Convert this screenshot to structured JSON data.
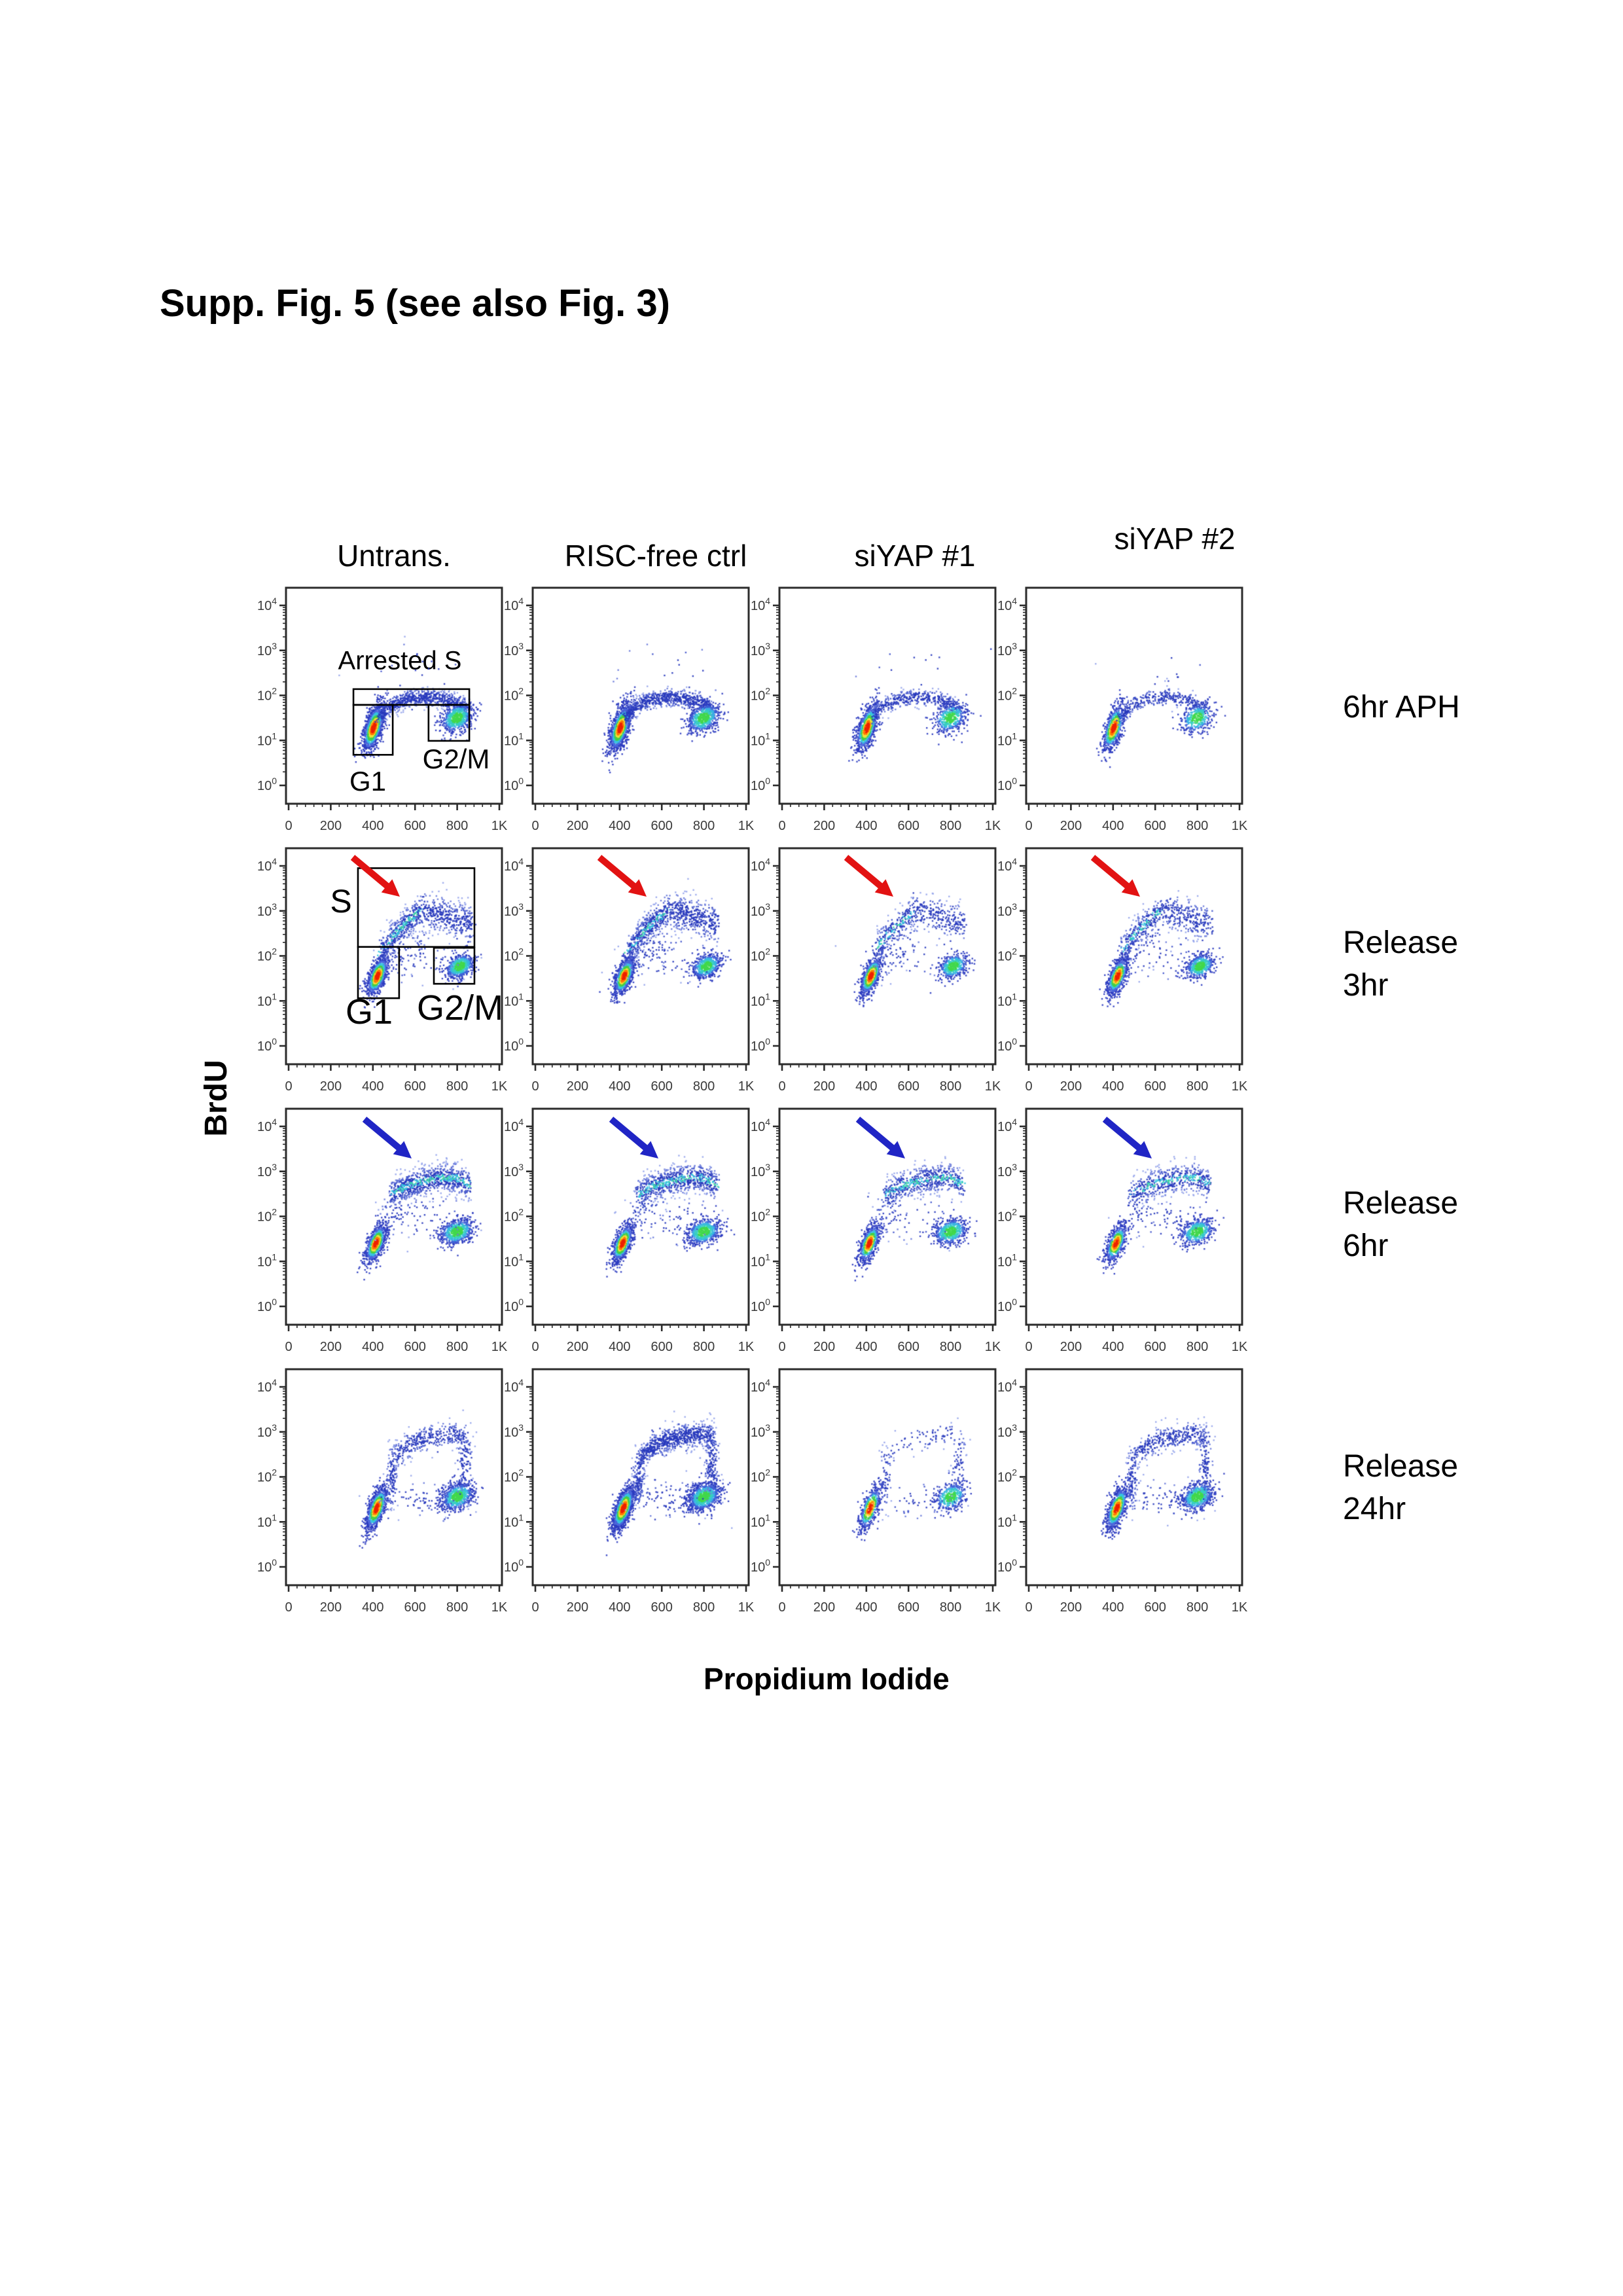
{
  "title": "Supp. Fig. 5 (see also Fig. 3)",
  "figure": {
    "x_axis_label": "Propidium Iodide",
    "y_axis_label": "BrdU",
    "col_headers": [
      "Untrans.",
      "RISC-free ctrl",
      "siYAP #1",
      "siYAP #2"
    ],
    "row_labels": [
      [
        "6hr APH"
      ],
      [
        "Release",
        "3hr"
      ],
      [
        "Release",
        "6hr"
      ],
      [
        "Release",
        "24hr"
      ]
    ]
  },
  "annotations": {
    "arrested_s": "Arrested S",
    "g1": "G1",
    "g2m": "G2/M",
    "s": "S"
  },
  "chart_data": {
    "type": "scatter",
    "title": "BrdU vs Propidium Iodide flow cytometry, 4 conditions x 4 time points",
    "xlabel": "Propidium Iodide",
    "ylabel": "BrdU",
    "x_range": [
      0,
      1024
    ],
    "x_ticks": [
      "0",
      "200",
      "400",
      "600",
      "800",
      "1K"
    ],
    "y_scale": "log",
    "y_tick_base": "10",
    "y_tick_exponents": [
      0,
      1,
      2,
      3,
      4
    ],
    "arrow_colors": {
      "red": "#e21212",
      "blue": "#2025c5"
    },
    "dot_palettes": {
      "jet": [
        [
          0.93,
          "#ee2200"
        ],
        [
          0.84,
          "#ff7800"
        ],
        [
          0.74,
          "#f0e03a"
        ],
        [
          0.6,
          "#46cf46"
        ],
        [
          0.45,
          "#38c3e0"
        ],
        [
          0.3,
          "#4a66dc"
        ],
        [
          0.0,
          "#2c3cc0"
        ]
      ],
      "green": [
        [
          0.8,
          "#42d84c"
        ],
        [
          0.6,
          "#38cfc0"
        ],
        [
          0.44,
          "#3ab4e4"
        ],
        [
          0.28,
          "#3f63d8"
        ],
        [
          0.0,
          "#2c3cc0"
        ]
      ],
      "blue": [
        [
          0.55,
          "#2839bd"
        ],
        [
          0.3,
          "#4457cc"
        ],
        [
          0.12,
          "#6b7cdb"
        ],
        [
          0.0,
          "#97a6ec"
        ]
      ],
      "blueGreen": [
        [
          0.94,
          "#3fd6a0"
        ],
        [
          0.84,
          "#35c4de"
        ],
        [
          0.55,
          "#2839bd"
        ],
        [
          0.3,
          "#4457cc"
        ],
        [
          0.12,
          "#6b7cdb"
        ],
        [
          0.0,
          "#97a6ec"
        ]
      ]
    },
    "row_populations": [
      [
        {
          "kind": "blob",
          "cx": 413,
          "cy": 1.28,
          "sx": 27,
          "sy": 0.27,
          "corr": 0.6,
          "n": 1300,
          "palette": "jet"
        },
        {
          "kind": "band",
          "pts": [
            [
              435,
              1.5
            ],
            [
              500,
              1.78
            ],
            [
              560,
              1.9
            ],
            [
              640,
              1.96
            ],
            [
              720,
              1.94
            ],
            [
              800,
              1.86
            ],
            [
              870,
              1.66
            ]
          ],
          "jy": 0.1,
          "n": 720,
          "palette": "blue",
          "top": true
        },
        {
          "kind": "blob",
          "cx": 818,
          "cy": 1.5,
          "sx": 40,
          "sy": 0.17,
          "corr": 0.3,
          "n": 640,
          "palette": "green"
        },
        {
          "kind": "blob",
          "cx": 660,
          "cy": 2.5,
          "sx": 150,
          "sy": 0.4,
          "corr": 0,
          "n": 18,
          "palette": "blue"
        }
      ],
      [
        {
          "kind": "blob",
          "cx": 432,
          "cy": 1.55,
          "sx": 26,
          "sy": 0.22,
          "corr": 0.6,
          "n": 950,
          "palette": "jet"
        },
        {
          "kind": "blob",
          "cx": 832,
          "cy": 1.77,
          "sx": 36,
          "sy": 0.14,
          "corr": 0.3,
          "n": 600,
          "palette": "green"
        },
        {
          "kind": "band",
          "pts": [
            [
              450,
              2.1
            ],
            [
              510,
              2.45
            ],
            [
              575,
              2.75
            ],
            [
              640,
              3.0
            ]
          ],
          "jy": 0.17,
          "n": 400,
          "palette": "blueGreen",
          "top": true
        },
        {
          "kind": "band",
          "pts": [
            [
              640,
              3.0
            ],
            [
              720,
              2.95
            ],
            [
              800,
              2.82
            ],
            [
              890,
              2.7
            ]
          ],
          "jy": 0.2,
          "n": 400,
          "palette": "blue",
          "top": true
        },
        {
          "kind": "blob",
          "cx": 620,
          "cy": 1.95,
          "sx": 110,
          "sy": 0.28,
          "corr": 0,
          "n": 60,
          "palette": "blue"
        },
        {
          "kind": "blob",
          "cx": 560,
          "cy": 2.2,
          "sx": 60,
          "sy": 0.3,
          "corr": 0.4,
          "n": 60,
          "palette": "blue"
        }
      ],
      [
        {
          "kind": "blob",
          "cx": 424,
          "cy": 1.4,
          "sx": 26,
          "sy": 0.22,
          "corr": 0.6,
          "n": 850,
          "palette": "jet"
        },
        {
          "kind": "blob",
          "cx": 818,
          "cy": 1.66,
          "sx": 42,
          "sy": 0.15,
          "corr": 0.25,
          "n": 640,
          "palette": "green"
        },
        {
          "kind": "band",
          "pts": [
            [
              500,
              2.5
            ],
            [
              580,
              2.68
            ],
            [
              660,
              2.78
            ],
            [
              740,
              2.86
            ],
            [
              810,
              2.86
            ],
            [
              880,
              2.7
            ]
          ],
          "jy": 0.16,
          "n": 830,
          "palette": "blueGreen",
          "top": true
        },
        {
          "kind": "blob",
          "cx": 530,
          "cy": 2.15,
          "sx": 45,
          "sy": 0.3,
          "corr": 0,
          "n": 60,
          "palette": "blue"
        },
        {
          "kind": "blob",
          "cx": 660,
          "cy": 1.95,
          "sx": 120,
          "sy": 0.27,
          "corr": 0,
          "n": 60,
          "palette": "blue"
        }
      ],
      [
        {
          "kind": "blob",
          "cx": 428,
          "cy": 1.3,
          "sx": 27,
          "sy": 0.25,
          "corr": 0.65,
          "n": 1050,
          "palette": "jet"
        },
        {
          "kind": "blob",
          "cx": 820,
          "cy": 1.56,
          "sx": 40,
          "sy": 0.16,
          "corr": 0.3,
          "n": 800,
          "palette": "green"
        },
        {
          "kind": "band",
          "pts": [
            [
              505,
              2.4
            ],
            [
              570,
              2.66
            ],
            [
              640,
              2.83
            ],
            [
              720,
              2.9
            ],
            [
              800,
              2.95
            ],
            [
              858,
              2.87
            ]
          ],
          "jy": 0.14,
          "n": 520,
          "palette": "blue",
          "top": true
        },
        {
          "kind": "blob",
          "cx": 503,
          "cy": 2.0,
          "sx": 14,
          "sy": 0.33,
          "corr": 0,
          "n": 110,
          "palette": "blue"
        },
        {
          "kind": "blob",
          "cx": 858,
          "cy": 2.3,
          "sx": 18,
          "sy": 0.42,
          "corr": 0,
          "n": 140,
          "palette": "blue"
        },
        {
          "kind": "blob",
          "cx": 640,
          "cy": 1.5,
          "sx": 110,
          "sy": 0.22,
          "corr": 0,
          "n": 90,
          "palette": "blue"
        }
      ]
    ],
    "panels": [
      {
        "row": 0,
        "col": 0,
        "seed": 11,
        "scale": 1.0,
        "band_scale": 1.0,
        "arrow": null,
        "gates": [
          [
            315,
            1.79,
            878,
            2.14
          ],
          [
            315,
            0.68,
            506,
            1.79
          ],
          [
            680,
            0.99,
            878,
            1.79
          ]
        ]
      },
      {
        "row": 0,
        "col": 1,
        "seed": 12,
        "scale": 0.95,
        "band_scale": 1.0,
        "arrow": null,
        "gates": null
      },
      {
        "row": 0,
        "col": 2,
        "seed": 13,
        "scale": 0.72,
        "band_scale": 0.8,
        "arrow": null,
        "gates": null
      },
      {
        "row": 0,
        "col": 3,
        "seed": 14,
        "scale": 0.58,
        "band_scale": 0.75,
        "arrow": null,
        "gates": null
      },
      {
        "row": 1,
        "col": 0,
        "seed": 21,
        "scale": 1.0,
        "band_scale": 1.0,
        "arrow": "red",
        "gates": [
          [
            337,
            2.2,
            903,
            3.95
          ],
          [
            337,
            1.06,
            537,
            2.2
          ],
          [
            706,
            1.38,
            903,
            2.18
          ]
        ]
      },
      {
        "row": 1,
        "col": 1,
        "seed": 22,
        "scale": 0.95,
        "band_scale": 1.1,
        "arrow": "red",
        "gates": null
      },
      {
        "row": 1,
        "col": 2,
        "seed": 23,
        "scale": 0.78,
        "band_scale": 0.8,
        "arrow": "red",
        "gates": null
      },
      {
        "row": 1,
        "col": 3,
        "seed": 24,
        "scale": 0.82,
        "band_scale": 0.85,
        "arrow": "red",
        "gates": null
      },
      {
        "row": 2,
        "col": 0,
        "seed": 31,
        "scale": 1.0,
        "band_scale": 1.0,
        "arrow": "blue",
        "gates": null
      },
      {
        "row": 2,
        "col": 1,
        "seed": 32,
        "scale": 0.95,
        "band_scale": 0.95,
        "arrow": "blue",
        "gates": null
      },
      {
        "row": 2,
        "col": 2,
        "seed": 33,
        "scale": 0.85,
        "band_scale": 0.85,
        "arrow": "blue",
        "gates": null
      },
      {
        "row": 2,
        "col": 3,
        "seed": 34,
        "scale": 0.8,
        "band_scale": 0.8,
        "arrow": "blue",
        "gates": null
      },
      {
        "row": 3,
        "col": 0,
        "seed": 41,
        "scale": 0.9,
        "band_scale": 0.75,
        "arrow": null,
        "gates": null
      },
      {
        "row": 3,
        "col": 1,
        "seed": 42,
        "scale": 1.2,
        "band_scale": 1.15,
        "arrow": null,
        "gates": null
      },
      {
        "row": 3,
        "col": 2,
        "seed": 43,
        "scale": 0.5,
        "band_scale": 0.3,
        "arrow": null,
        "gates": null
      },
      {
        "row": 3,
        "col": 3,
        "seed": 44,
        "scale": 0.85,
        "band_scale": 0.8,
        "arrow": null,
        "gates": null
      }
    ]
  }
}
